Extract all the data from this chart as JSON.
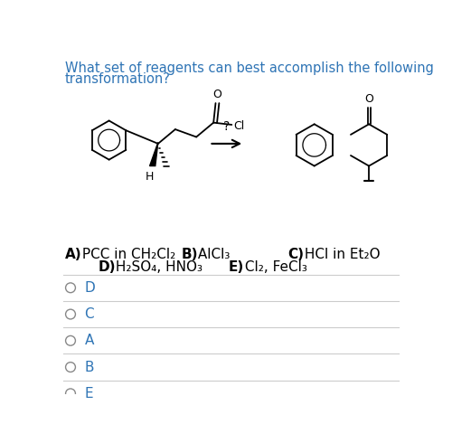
{
  "title_line1": "What set of reagents can best accomplish the following",
  "title_line2": "transformation?",
  "bg_color": "#ffffff",
  "text_color": "#000000",
  "title_color": "#2e74b5",
  "title_fontsize": 10.5,
  "option_fontsize": 11.0,
  "radio_label_color": "#2e74b5",
  "option_A_bold": "A)",
  "option_A_text": " PCC in CH₂Cl₂",
  "option_B_bold": "B)",
  "option_B_text": " AlCl₃",
  "option_C_bold": "C)",
  "option_C_text": " HCl in Et₂O",
  "option_D_bold": "D)",
  "option_D_text": " H₂SO₄, HNO₃",
  "option_E_bold": "E)",
  "option_E_text": " Cl₂, FeCl₃",
  "radio_labels": [
    "D",
    "C",
    "A",
    "B",
    "E"
  ]
}
